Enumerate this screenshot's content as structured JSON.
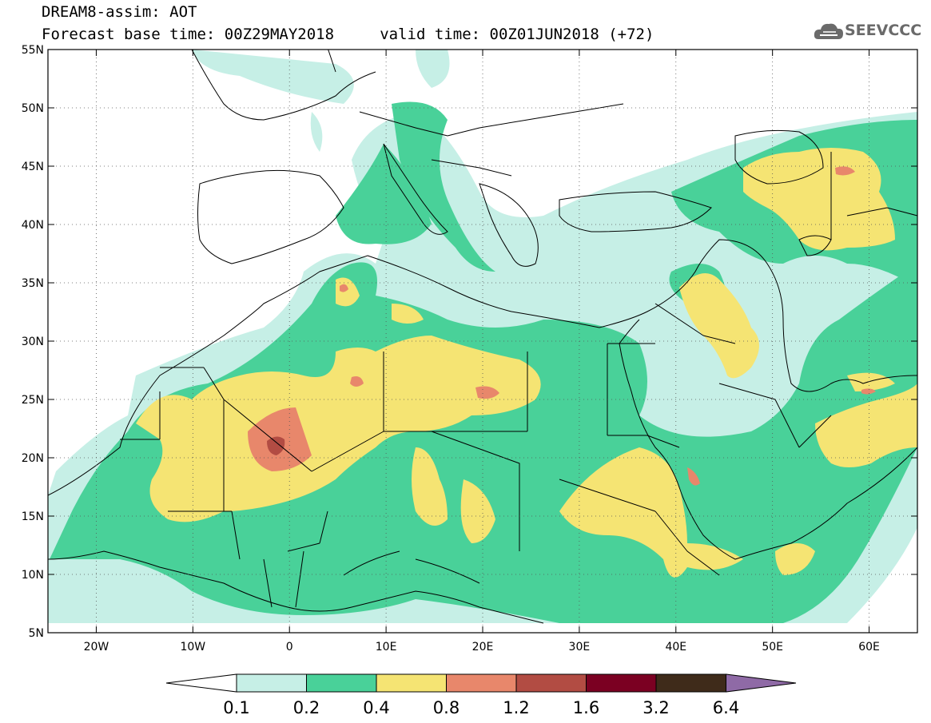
{
  "header": {
    "title_line1": "DREAM8-assim: AOT",
    "title_line2": "Forecast base time: 00Z29MAY2018     valid time: 00Z01JUN2018 (+72)"
  },
  "logo": {
    "text": "SEEVCCC",
    "icon": "cloud-icon"
  },
  "map": {
    "lon_range": [
      -25,
      65
    ],
    "lat_range": [
      5,
      55
    ],
    "graticule": "dotted",
    "lat_labels": [
      "55N",
      "50N",
      "45N",
      "40N",
      "35N",
      "30N",
      "25N",
      "20N",
      "15N",
      "10N",
      "5N"
    ],
    "lat_values": [
      55,
      50,
      45,
      40,
      35,
      30,
      25,
      20,
      15,
      10,
      5
    ],
    "lon_labels": [
      "20W",
      "10W",
      "0",
      "10E",
      "20E",
      "30E",
      "40E",
      "50E",
      "60E"
    ],
    "lon_values": [
      -20,
      -10,
      0,
      10,
      20,
      30,
      40,
      50,
      60
    ]
  },
  "colorbar": {
    "levels": [
      "0.1",
      "0.2",
      "0.4",
      "0.8",
      "1.2",
      "1.6",
      "3.2",
      "6.4"
    ],
    "colors": [
      "#ffffff",
      "#c6efe6",
      "#49d199",
      "#f5e473",
      "#e8876b",
      "#b24c43",
      "#7b0022",
      "#3f2b1a",
      "#8f6aa6"
    ]
  },
  "colors": {
    "c1": "#c6efe6",
    "c2": "#49d199",
    "c3": "#f5e473",
    "c4": "#e8876b",
    "c5": "#b24c43"
  }
}
